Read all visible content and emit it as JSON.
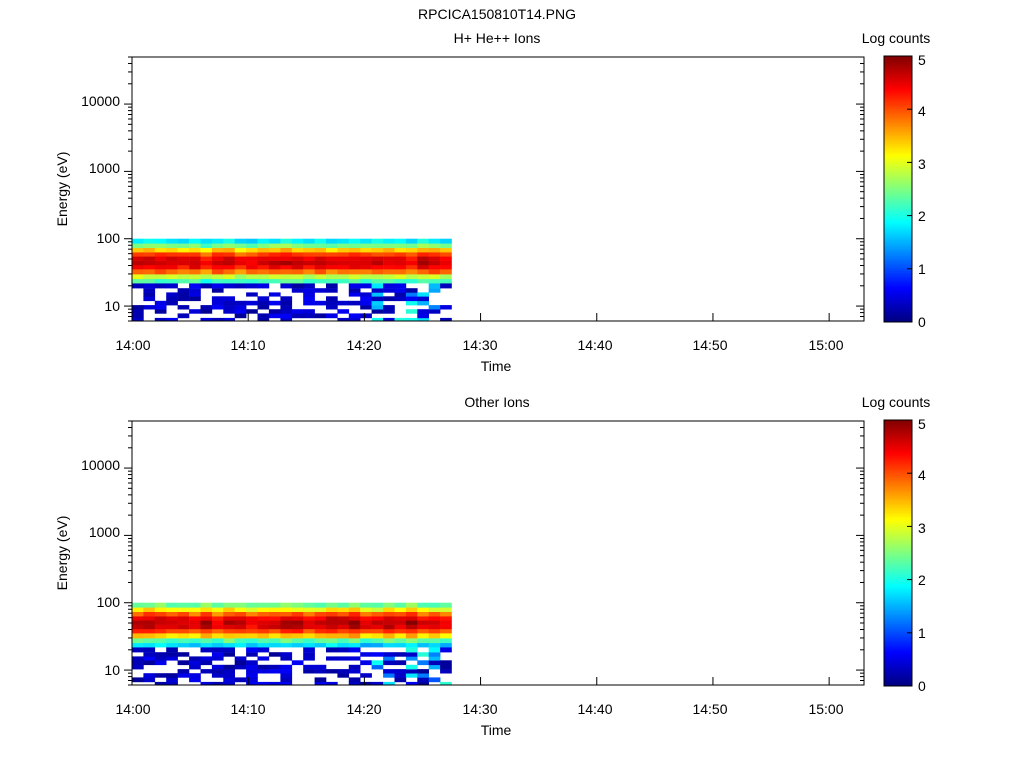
{
  "figure_title": "RPCICA150810T14.PNG",
  "chart_data": [
    {
      "type": "heatmap",
      "title": "H+ He++ Ions",
      "xlabel": "Time",
      "ylabel": "Energy (eV)",
      "x_ticks": [
        "14:00",
        "14:10",
        "14:20",
        "14:30",
        "14:40",
        "14:50",
        "15:00"
      ],
      "y_ticks": [
        "10",
        "100",
        "1000",
        "10000"
      ],
      "y_scale": "log",
      "ylim": [
        6,
        50000
      ],
      "xlim": [
        "14:00",
        "15:03"
      ],
      "colorbar": {
        "label": "Log counts",
        "ticks": [
          "0",
          "1",
          "2",
          "3",
          "4",
          "5"
        ],
        "range": [
          0,
          5
        ],
        "colormap": "jet"
      },
      "data_extent": {
        "time_start": "14:00",
        "time_end": "14:27.5",
        "energy_min": 6,
        "energy_max": 100
      },
      "n_time_bins": 28,
      "energy_bins": [
        6.1,
        7.3,
        8.3,
        9.7,
        11,
        13,
        15,
        17,
        20,
        24,
        27,
        33,
        38,
        44,
        51,
        59,
        68,
        80,
        91
      ],
      "peak_energy_eV": 45,
      "peak_log_counts": 4.6
    },
    {
      "type": "heatmap",
      "title": "Other Ions",
      "xlabel": "Time",
      "ylabel": "Energy (eV)",
      "x_ticks": [
        "14:00",
        "14:10",
        "14:20",
        "14:30",
        "14:40",
        "14:50",
        "15:00"
      ],
      "y_ticks": [
        "10",
        "100",
        "1000",
        "10000"
      ],
      "y_scale": "log",
      "ylim": [
        6,
        50000
      ],
      "xlim": [
        "14:00",
        "15:03"
      ],
      "colorbar": {
        "label": "Log counts",
        "ticks": [
          "0",
          "1",
          "2",
          "3",
          "4",
          "5"
        ],
        "range": [
          0,
          5
        ],
        "colormap": "jet"
      },
      "data_extent": {
        "time_start": "14:00",
        "time_end": "14:27.5",
        "energy_min": 6,
        "energy_max": 100
      },
      "n_time_bins": 28,
      "energy_bins": [
        6.1,
        7.3,
        8.3,
        9.7,
        11,
        13,
        15,
        17,
        20,
        24,
        27,
        33,
        38,
        44,
        51,
        59,
        68,
        80,
        91
      ],
      "peak_energy_eV": 50,
      "peak_log_counts": 4.7
    }
  ]
}
